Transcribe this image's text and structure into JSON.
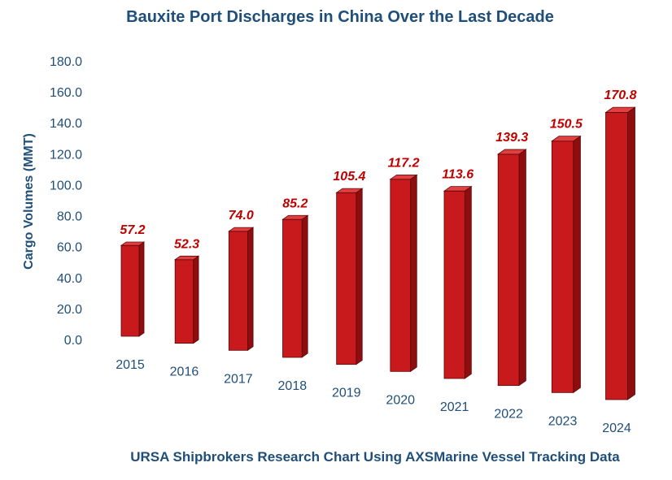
{
  "chart_data": {
    "type": "bar",
    "title": "Bauxite Port Discharges in China Over the Last Decade",
    "subtitle": "URSA Shipbrokers Research Chart Using AXSMarine Vessel Tracking Data",
    "ylabel": "Cargo Volumes (MMT)",
    "xlabel": "",
    "categories": [
      "2015",
      "2016",
      "2017",
      "2018",
      "2019",
      "2020",
      "2021",
      "2022",
      "2023",
      "2024"
    ],
    "values": [
      57.2,
      52.3,
      74.0,
      85.2,
      105.4,
      117.2,
      113.6,
      139.3,
      150.5,
      170.8
    ],
    "value_labels": [
      "57.2",
      "52.3",
      "74.0",
      "85.2",
      "105.4",
      "117.2",
      "113.6",
      "139.3",
      "150.5",
      "170.8"
    ],
    "ylim": [
      0,
      180
    ],
    "yticks": [
      "0.0",
      "20.0",
      "40.0",
      "60.0",
      "80.0",
      "100.0",
      "120.0",
      "140.0",
      "160.0",
      "180.0"
    ],
    "grid": false,
    "legend": "none",
    "colors": {
      "bar_front": "#c8191c",
      "bar_side": "#8e0e10",
      "bar_top": "#e04040",
      "bar_edge": "#5a0508",
      "text": "#1f4e79",
      "data_label": "#c00000"
    }
  }
}
